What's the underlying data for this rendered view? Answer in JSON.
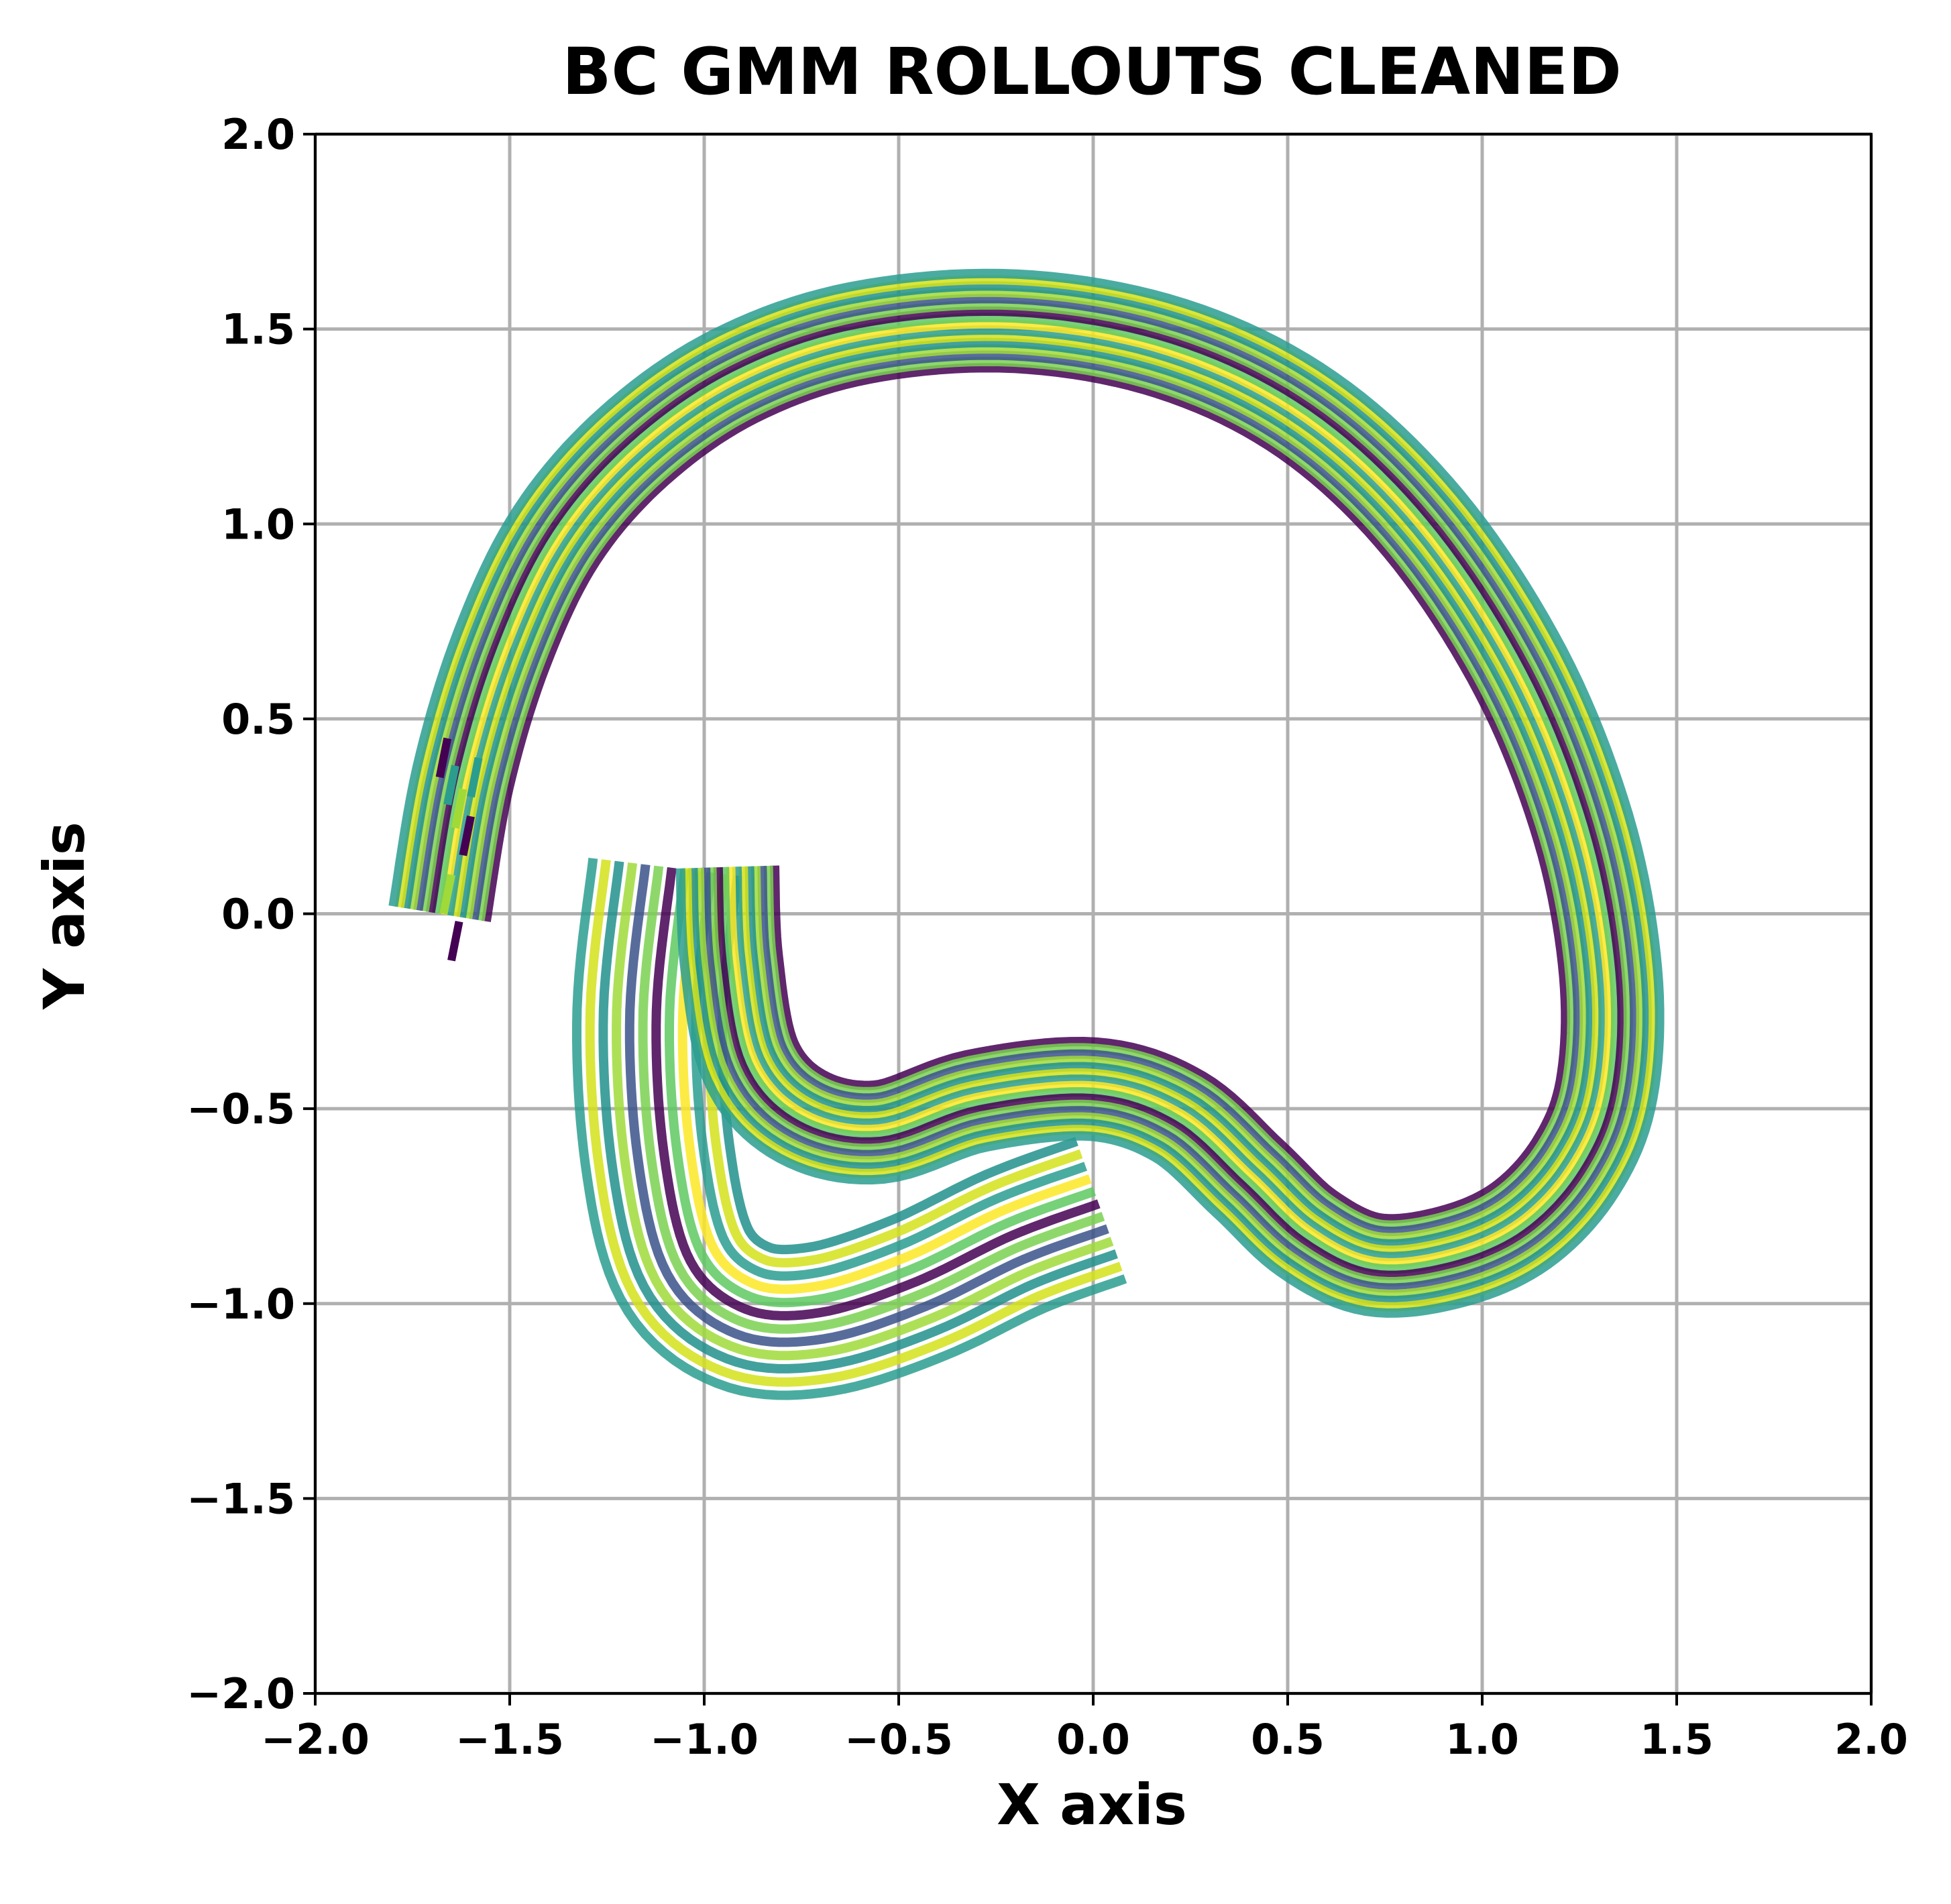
{
  "chart_data": {
    "type": "line",
    "title": "BC GMM ROLLOUTS CLEANED",
    "xlabel": "X axis",
    "ylabel": "Y axis",
    "xlim": [
      -2.0,
      2.0
    ],
    "ylim": [
      -2.0,
      2.0
    ],
    "x_ticks": [
      -2.0,
      -1.5,
      -1.0,
      -0.5,
      0.0,
      0.5,
      1.0,
      1.5,
      2.0
    ],
    "y_ticks": [
      -2.0,
      -1.5,
      -1.0,
      -0.5,
      0.0,
      0.5,
      1.0,
      1.5,
      2.0
    ],
    "x_tick_labels": [
      "−2.0",
      "−1.5",
      "−1.0",
      "−0.5",
      "0.0",
      "0.5",
      "1.0",
      "1.5",
      "2.0"
    ],
    "y_tick_labels": [
      "−2.0",
      "−1.5",
      "−1.0",
      "−0.5",
      "0.0",
      "0.5",
      "1.0",
      "1.5",
      "2.0"
    ],
    "grid": true,
    "grid_color": "#b0b0b0",
    "colormap": "viridis",
    "colors": [
      "#440154",
      "#3b528b",
      "#21918c",
      "#2a9d8f",
      "#5ec962",
      "#7ad151",
      "#a0da39",
      "#d4e21a",
      "#fde725"
    ],
    "loop_trajectory": {
      "description_points": "mean path",
      "x": [
        -1.68,
        -1.62,
        -1.52,
        -1.38,
        -1.18,
        -0.92,
        -0.6,
        -0.2,
        0.2,
        0.55,
        0.85,
        1.1,
        1.26,
        1.33,
        1.32,
        1.24,
        1.1,
        0.92,
        0.72,
        0.55,
        0.4,
        0.22,
        0.0,
        -0.3,
        -0.55,
        -0.75,
        -0.88,
        -0.93,
        -0.94
      ],
      "y": [
        0.0,
        0.35,
        0.68,
        0.97,
        1.2,
        1.38,
        1.49,
        1.52,
        1.45,
        1.28,
        1.0,
        0.62,
        0.22,
        -0.15,
        -0.45,
        -0.65,
        -0.8,
        -0.88,
        -0.9,
        -0.82,
        -0.68,
        -0.52,
        -0.45,
        -0.48,
        -0.56,
        -0.52,
        -0.38,
        -0.12,
        0.12
      ],
      "count": 16,
      "spread": 0.055
    },
    "inner_trajectories": {
      "description_points": "mean path",
      "x": [
        0.02,
        -0.2,
        -0.45,
        -0.7,
        -0.9,
        -1.05,
        -1.12,
        -1.14,
        -1.1
      ],
      "y": [
        -0.76,
        -0.84,
        -0.96,
        -1.04,
        -1.03,
        -0.9,
        -0.62,
        -0.25,
        0.12
      ],
      "count": 12,
      "spread": 0.085
    },
    "start_ticks": {
      "x": [
        -1.68,
        -1.66,
        -1.64,
        -1.62,
        -1.6,
        -1.67,
        -1.65
      ],
      "y": [
        0.35,
        0.28,
        0.22,
        0.15,
        0.3,
        0.0,
        -0.12
      ]
    }
  }
}
